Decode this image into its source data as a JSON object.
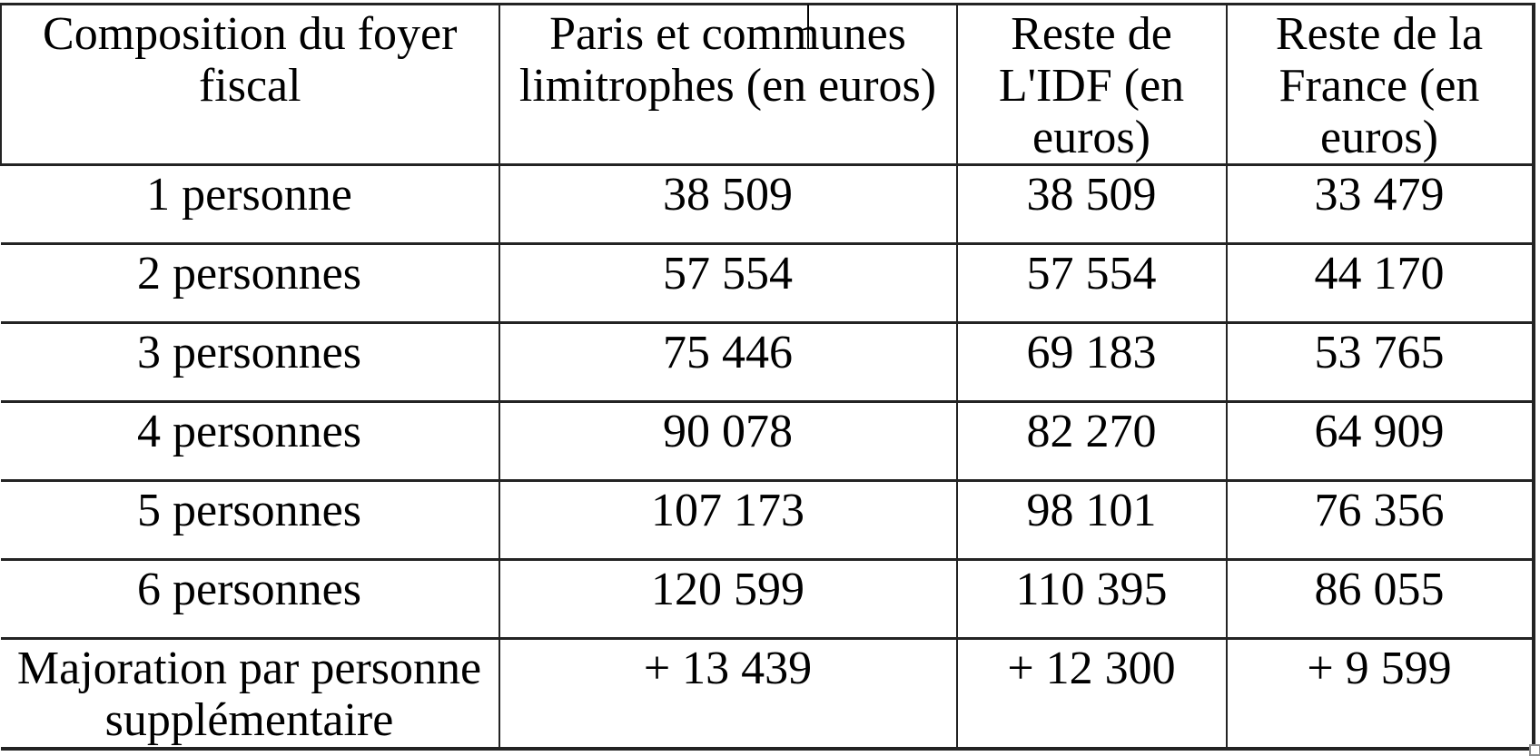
{
  "table": {
    "title_semantic": "Plafonds de ressources selon la composition du foyer fiscal",
    "headers": [
      "Composition du foyer\nfiscal",
      "Paris et communes\nlimitrophes (en euros)",
      "Reste de\nL'IDF (en\neuros)",
      "Reste de la\nFrance (en\neuros)"
    ],
    "rows": [
      [
        "1 personne",
        "38 509",
        "38 509",
        "33 479"
      ],
      [
        "2 personnes",
        "57 554",
        "57 554",
        "44 170"
      ],
      [
        "3 personnes",
        "75 446",
        "69 183",
        "53 765"
      ],
      [
        "4 personnes",
        "90 078",
        "82 270",
        "64 909"
      ],
      [
        "5 personnes",
        "107 173",
        "98 101",
        "76 356"
      ],
      [
        "6 personnes",
        "120 599",
        "110 395",
        "86 055"
      ],
      [
        "Majoration par personne\nsupplémentaire",
        "+ 13 439",
        "+ 12 300",
        "+ 9 599"
      ]
    ]
  },
  "colors": {
    "background": "#ffffff",
    "text": "#000000",
    "border": "#232323",
    "resize_handle": "#8f8f8f"
  }
}
